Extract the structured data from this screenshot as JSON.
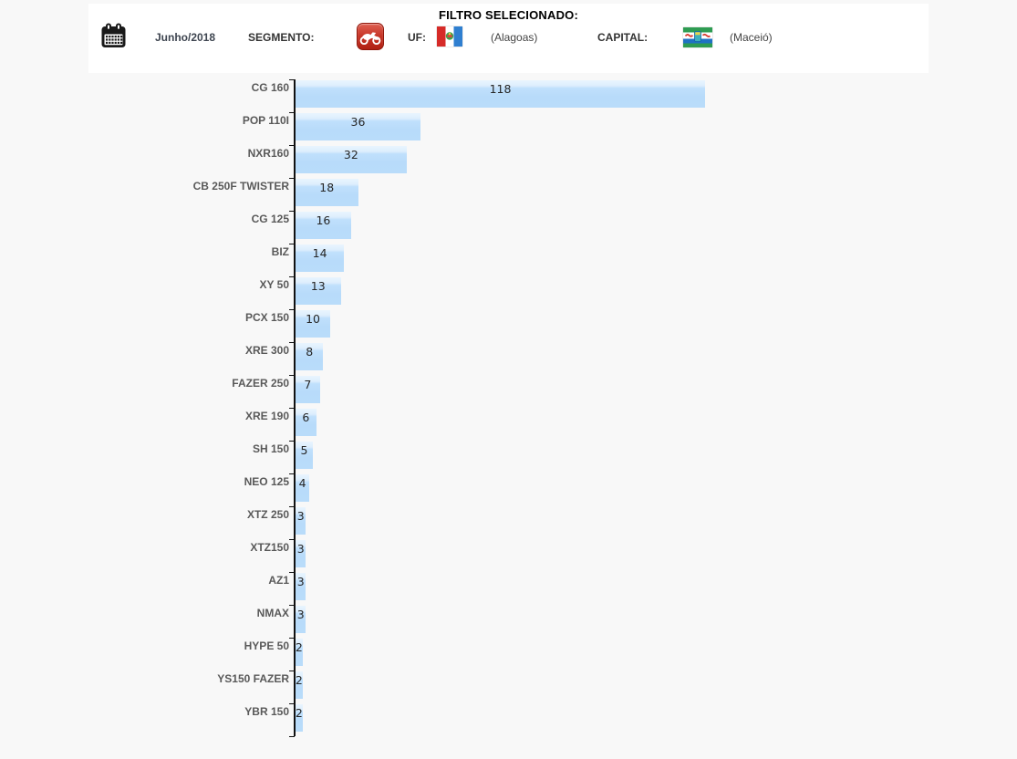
{
  "header": {
    "title": "FILTRO SELECIONADO:",
    "period": "Junho/2018",
    "segment_label": "SEGMENTO:",
    "uf_label": "UF:",
    "uf_state": "(Alagoas)",
    "capital_label": "CAPITAL:",
    "capital_city": "(Maceió)",
    "icons": {
      "period": "calendar-icon",
      "segment": "motorcycle-icon",
      "uf": "alagoas-flag-icon",
      "capital": "maceio-flag-icon"
    }
  },
  "chart_data": {
    "type": "bar",
    "orientation": "horizontal",
    "title": "",
    "xlabel": "",
    "ylabel": "",
    "grid": false,
    "legend": null,
    "value_labels_position": "inside-top-center",
    "categories": [
      "CG 160",
      "POP 110I",
      "NXR160",
      "CB 250F TWISTER",
      "CG 125",
      "BIZ",
      "XY 50",
      "PCX 150",
      "XRE 300",
      "FAZER 250",
      "XRE 190",
      "SH 150",
      "NEO 125",
      "XTZ 250",
      "XTZ150",
      "AZ1",
      "NMAX",
      "HYPE 50",
      "YS150 FAZER",
      "YBR 150"
    ],
    "values": [
      118,
      36,
      32,
      18,
      16,
      14,
      13,
      10,
      8,
      7,
      6,
      5,
      4,
      3,
      3,
      3,
      3,
      2,
      2,
      2
    ],
    "max_value": 118,
    "colors": {
      "bar_fill": "#b9dcfa",
      "bar_fill_top": "#e3f1fe",
      "axis": "#111111",
      "category_label": "#595959",
      "value_label": "#262626",
      "page_bg": "#f8f8f8",
      "panel_bg": "#ffffff",
      "segment_icon_red": "#b02013"
    }
  }
}
